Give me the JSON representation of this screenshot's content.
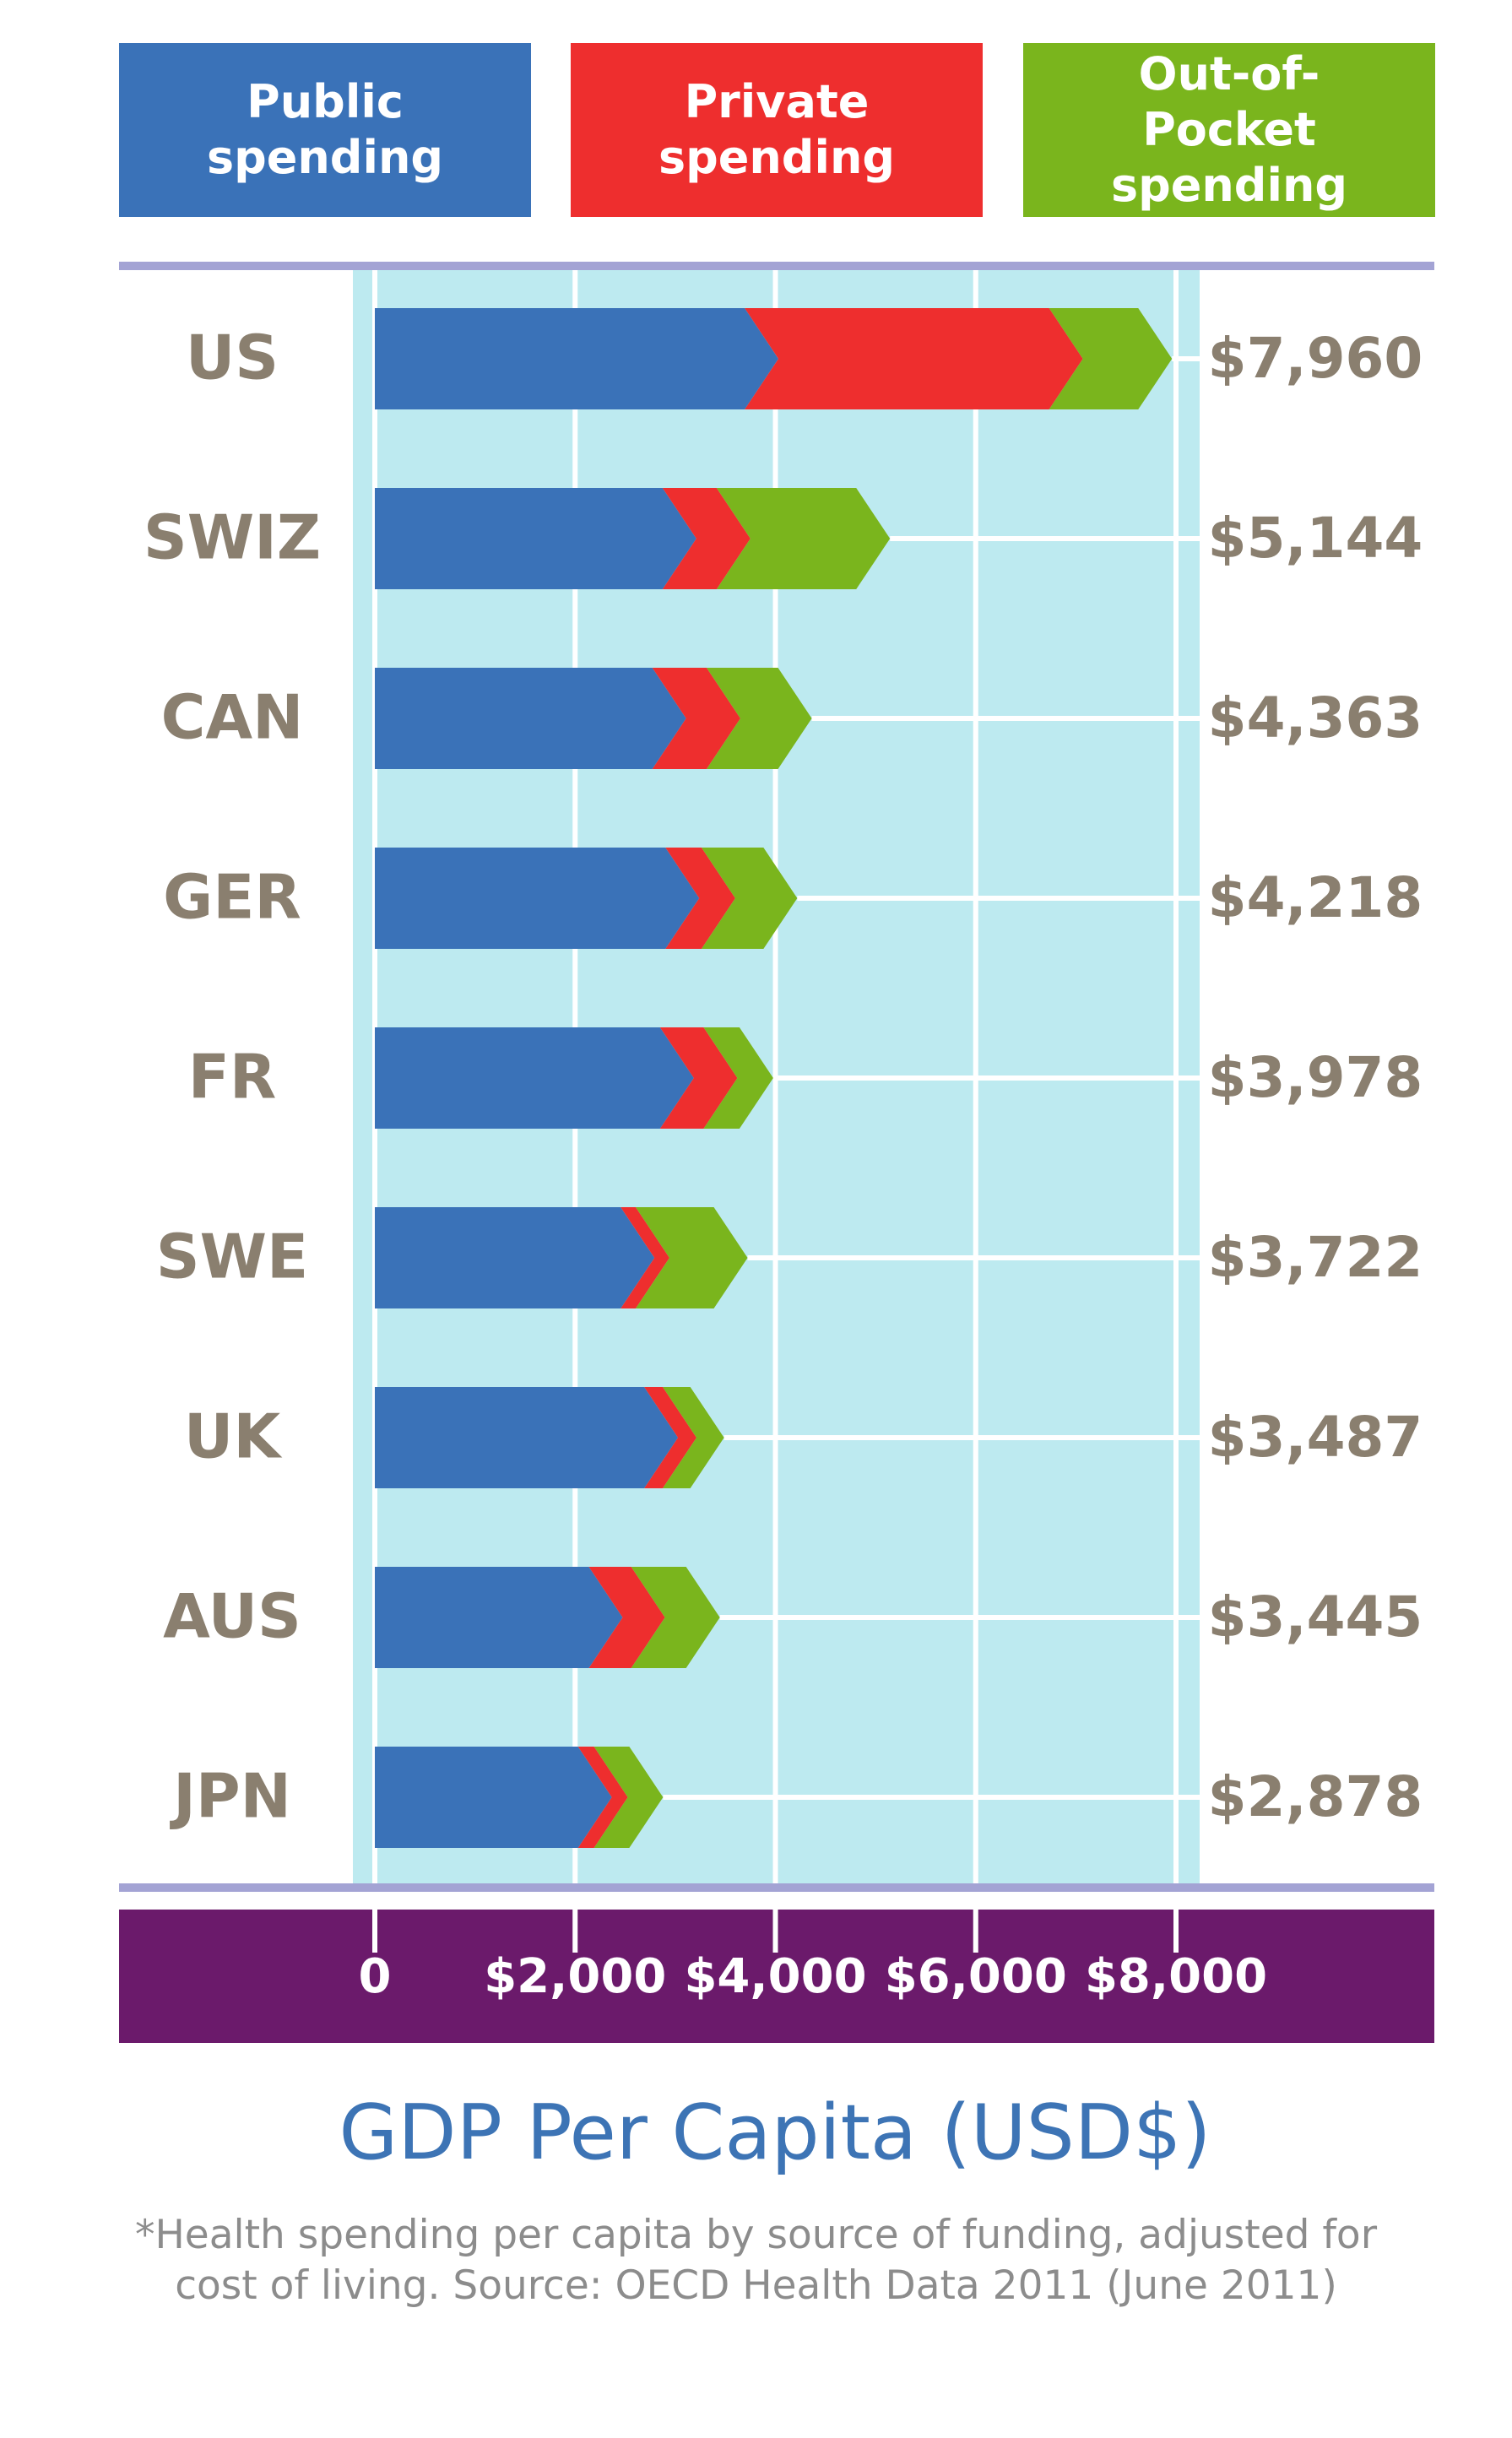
{
  "chart_data": {
    "type": "stacked_bar_horizontal",
    "categories": [
      "US",
      "SWIZ",
      "CAN",
      "GER",
      "FR",
      "SWE",
      "UK",
      "AUS",
      "JPN"
    ],
    "series": [
      {
        "name": "Public spending",
        "color": "#3a72b8",
        "values": [
          4030,
          3210,
          3108,
          3239,
          3185,
          2792,
          3027,
          2474,
          2366
        ]
      },
      {
        "name": "Private spending",
        "color": "#ee2e2e",
        "values": [
          3040,
          540,
          542,
          360,
          435,
          150,
          185,
          423,
          160
        ]
      },
      {
        "name": "Out-of-Pocket spending",
        "color": "#7ab51d",
        "values": [
          890,
          1394,
          713,
          619,
          358,
          780,
          275,
          548,
          352
        ]
      }
    ],
    "totals": [
      7960,
      5144,
      4363,
      4218,
      3978,
      3722,
      3487,
      3445,
      2878
    ],
    "total_labels": [
      "$7,960",
      "$5,144",
      "$4,363",
      "$4,218",
      "$3,978",
      "$3,722",
      "$3,487",
      "$3,445",
      "$2,878"
    ],
    "xlim": [
      0,
      8000
    ],
    "xticks": [
      0,
      {
        "value": 2000,
        "label": "$2,000"
      },
      {
        "value": 4000,
        "label": "$4,000"
      },
      {
        "value": 6000,
        "label": "$6,000"
      },
      {
        "value": 8000,
        "label": "$8,000"
      }
    ],
    "grid": true,
    "x_label": "GDP Per Capita (USD$)",
    "footnote": [
      "*Health spending per capita by source of funding, adjusted for",
      "cost of living. Source: OECD Health Data 2011 (June 2011)"
    ]
  }
}
